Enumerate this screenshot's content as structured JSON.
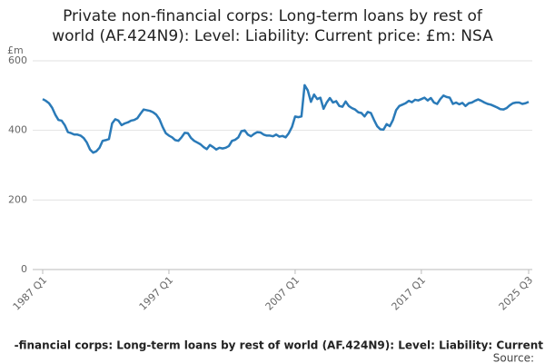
{
  "chart_data": {
    "type": "line",
    "title": [
      "Private non-financial corps: Long-term loans by rest of",
      "world (AF.424N9): Level: Liability: Current price: £m: NSA"
    ],
    "y_label": "£m",
    "footer": "-financial corps: Long-term loans by rest of world (AF.424N9): Level: Liability: Current",
    "source": "Source:",
    "color": "#2a7ab8",
    "grid": true,
    "ylim": [
      0,
      600
    ],
    "yticks": [
      0,
      200,
      400,
      600
    ],
    "categories": [
      "1987 Q1",
      null,
      null,
      null,
      null,
      null,
      null,
      null,
      null,
      null,
      null,
      null,
      null,
      null,
      null,
      null,
      null,
      null,
      null,
      null,
      null,
      null,
      null,
      null,
      null,
      null,
      null,
      null,
      null,
      null,
      null,
      null,
      null,
      null,
      null,
      null,
      null,
      null,
      null,
      null,
      "1997 Q1",
      null,
      null,
      null,
      null,
      null,
      null,
      null,
      null,
      null,
      null,
      null,
      null,
      null,
      null,
      null,
      null,
      null,
      null,
      null,
      null,
      null,
      null,
      null,
      null,
      null,
      null,
      null,
      null,
      null,
      null,
      null,
      null,
      null,
      null,
      null,
      null,
      null,
      null,
      null,
      "2007 Q1",
      null,
      null,
      null,
      null,
      null,
      null,
      null,
      null,
      null,
      null,
      null,
      null,
      null,
      null,
      null,
      null,
      null,
      null,
      null,
      null,
      null,
      null,
      null,
      null,
      null,
      null,
      null,
      null,
      null,
      null,
      null,
      null,
      null,
      null,
      null,
      null,
      null,
      null,
      null,
      "2017 Q1",
      null,
      null,
      null,
      null,
      null,
      null,
      null,
      null,
      null,
      null,
      null,
      null,
      null,
      null,
      null,
      null,
      null,
      null,
      null,
      null,
      null,
      null,
      null,
      null,
      null,
      null,
      null,
      null,
      null,
      null,
      null,
      null,
      null,
      "2025 Q3"
    ],
    "values": [
      490,
      485,
      478,
      465,
      445,
      430,
      428,
      415,
      395,
      392,
      388,
      388,
      385,
      378,
      365,
      345,
      336,
      340,
      350,
      370,
      372,
      375,
      420,
      432,
      428,
      415,
      420,
      423,
      428,
      430,
      435,
      448,
      460,
      458,
      456,
      452,
      445,
      432,
      410,
      392,
      385,
      380,
      372,
      370,
      380,
      393,
      392,
      378,
      370,
      365,
      360,
      352,
      346,
      358,
      352,
      345,
      350,
      348,
      350,
      355,
      370,
      373,
      380,
      398,
      400,
      388,
      383,
      390,
      395,
      394,
      388,
      385,
      385,
      383,
      388,
      382,
      384,
      380,
      392,
      410,
      440,
      438,
      440,
      530,
      515,
      482,
      503,
      490,
      494,
      462,
      480,
      493,
      480,
      484,
      470,
      468,
      483,
      470,
      464,
      460,
      452,
      450,
      440,
      453,
      450,
      430,
      412,
      403,
      402,
      418,
      412,
      430,
      458,
      470,
      474,
      478,
      485,
      481,
      488,
      486,
      490,
      494,
      486,
      493,
      480,
      476,
      490,
      500,
      496,
      494,
      476,
      480,
      475,
      479,
      470,
      478,
      480,
      485,
      489,
      485,
      480,
      476,
      474,
      470,
      466,
      461,
      460,
      464,
      472,
      478,
      480,
      480,
      476,
      478,
      482
    ]
  }
}
